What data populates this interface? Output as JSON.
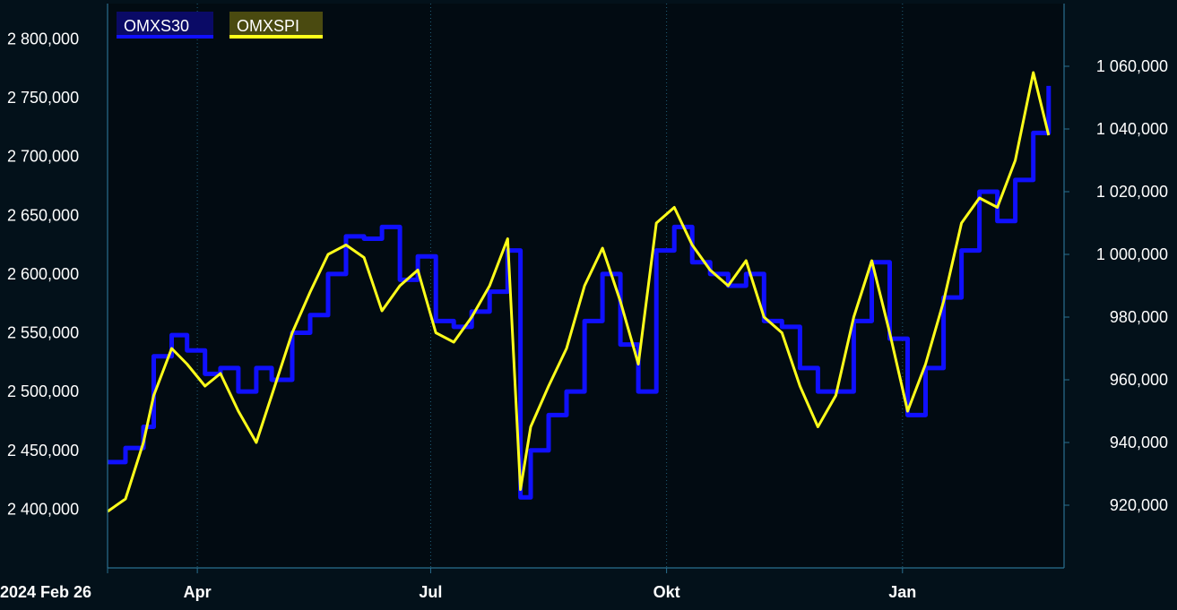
{
  "chart_data": {
    "type": "line",
    "title": "",
    "xlabel": "",
    "ylabel": "",
    "x_tick_labels": [
      "2024 Feb 26",
      "Apr",
      "Jul",
      "Okt",
      "Jan"
    ],
    "y_left": {
      "lim": [
        2350000,
        2830000
      ],
      "ticks": [
        2400000,
        2450000,
        2500000,
        2550000,
        2600000,
        2650000,
        2700000,
        2750000,
        2800000
      ],
      "tick_labels": [
        "2 400,000",
        "2 450,000",
        "2 500,000",
        "2 550,000",
        "2 600,000",
        "2 650,000",
        "2 700,000",
        "2 750,000",
        "2 800,000"
      ]
    },
    "y_right": {
      "lim": [
        900000,
        1080000
      ],
      "ticks": [
        920000,
        940000,
        960000,
        980000,
        1000000,
        1020000,
        1040000,
        1060000
      ],
      "tick_labels": [
        "920,000",
        "940,000",
        "960,000",
        "980,000",
        "1 000,000",
        "1 020,000",
        "1 040,000",
        "1 060,000"
      ]
    },
    "grid": "vertical dotted",
    "legend_position": "top-left",
    "series": [
      {
        "name": "OMXS30",
        "axis": "left",
        "color": "#1010ff",
        "style": "step",
        "points": [
          [
            "2024-02-26",
            2440000
          ],
          [
            "2024-03-04",
            2452000
          ],
          [
            "2024-03-11",
            2470000
          ],
          [
            "2024-03-15",
            2530000
          ],
          [
            "2024-03-22",
            2548000
          ],
          [
            "2024-03-28",
            2535000
          ],
          [
            "2024-04-04",
            2515000
          ],
          [
            "2024-04-10",
            2520000
          ],
          [
            "2024-04-17",
            2500000
          ],
          [
            "2024-04-24",
            2520000
          ],
          [
            "2024-04-30",
            2510000
          ],
          [
            "2024-05-08",
            2550000
          ],
          [
            "2024-05-15",
            2565000
          ],
          [
            "2024-05-22",
            2600000
          ],
          [
            "2024-05-29",
            2632000
          ],
          [
            "2024-06-05",
            2630000
          ],
          [
            "2024-06-12",
            2640000
          ],
          [
            "2024-06-19",
            2595000
          ],
          [
            "2024-06-26",
            2615000
          ],
          [
            "2024-07-03",
            2560000
          ],
          [
            "2024-07-10",
            2555000
          ],
          [
            "2024-07-17",
            2568000
          ],
          [
            "2024-07-24",
            2585000
          ],
          [
            "2024-07-31",
            2620000
          ],
          [
            "2024-08-05",
            2410000
          ],
          [
            "2024-08-09",
            2450000
          ],
          [
            "2024-08-16",
            2480000
          ],
          [
            "2024-08-23",
            2500000
          ],
          [
            "2024-08-30",
            2560000
          ],
          [
            "2024-09-06",
            2600000
          ],
          [
            "2024-09-13",
            2540000
          ],
          [
            "2024-09-20",
            2500000
          ],
          [
            "2024-09-27",
            2620000
          ],
          [
            "2024-10-04",
            2640000
          ],
          [
            "2024-10-11",
            2610000
          ],
          [
            "2024-10-18",
            2600000
          ],
          [
            "2024-10-25",
            2590000
          ],
          [
            "2024-11-01",
            2600000
          ],
          [
            "2024-11-08",
            2560000
          ],
          [
            "2024-11-15",
            2555000
          ],
          [
            "2024-11-22",
            2520000
          ],
          [
            "2024-11-29",
            2500000
          ],
          [
            "2024-12-06",
            2500000
          ],
          [
            "2024-12-13",
            2560000
          ],
          [
            "2024-12-20",
            2610000
          ],
          [
            "2024-12-27",
            2545000
          ],
          [
            "2025-01-03",
            2480000
          ],
          [
            "2025-01-10",
            2520000
          ],
          [
            "2025-01-17",
            2580000
          ],
          [
            "2025-01-24",
            2620000
          ],
          [
            "2025-01-31",
            2670000
          ],
          [
            "2025-02-07",
            2645000
          ],
          [
            "2025-02-14",
            2680000
          ],
          [
            "2025-02-21",
            2720000
          ],
          [
            "2025-02-27",
            2760000
          ]
        ]
      },
      {
        "name": "OMXSPI",
        "axis": "right",
        "color": "#ffff1a",
        "style": "line",
        "points": [
          [
            "2024-02-26",
            918000
          ],
          [
            "2024-03-04",
            922000
          ],
          [
            "2024-03-11",
            940000
          ],
          [
            "2024-03-15",
            955000
          ],
          [
            "2024-03-22",
            970000
          ],
          [
            "2024-03-28",
            965000
          ],
          [
            "2024-04-04",
            958000
          ],
          [
            "2024-04-10",
            962000
          ],
          [
            "2024-04-17",
            950000
          ],
          [
            "2024-04-24",
            940000
          ],
          [
            "2024-04-30",
            955000
          ],
          [
            "2024-05-08",
            975000
          ],
          [
            "2024-05-15",
            988000
          ],
          [
            "2024-05-22",
            1000000
          ],
          [
            "2024-05-29",
            1003000
          ],
          [
            "2024-06-05",
            999000
          ],
          [
            "2024-06-12",
            982000
          ],
          [
            "2024-06-19",
            990000
          ],
          [
            "2024-06-26",
            995000
          ],
          [
            "2024-07-03",
            975000
          ],
          [
            "2024-07-10",
            972000
          ],
          [
            "2024-07-17",
            980000
          ],
          [
            "2024-07-24",
            990000
          ],
          [
            "2024-07-31",
            1005000
          ],
          [
            "2024-08-05",
            925000
          ],
          [
            "2024-08-09",
            945000
          ],
          [
            "2024-08-16",
            958000
          ],
          [
            "2024-08-23",
            970000
          ],
          [
            "2024-08-30",
            990000
          ],
          [
            "2024-09-06",
            1002000
          ],
          [
            "2024-09-13",
            985000
          ],
          [
            "2024-09-20",
            965000
          ],
          [
            "2024-09-27",
            1010000
          ],
          [
            "2024-10-04",
            1015000
          ],
          [
            "2024-10-11",
            1003000
          ],
          [
            "2024-10-18",
            995000
          ],
          [
            "2024-10-25",
            990000
          ],
          [
            "2024-11-01",
            998000
          ],
          [
            "2024-11-08",
            980000
          ],
          [
            "2024-11-15",
            975000
          ],
          [
            "2024-11-22",
            958000
          ],
          [
            "2024-11-29",
            945000
          ],
          [
            "2024-12-06",
            955000
          ],
          [
            "2024-12-13",
            980000
          ],
          [
            "2024-12-20",
            998000
          ],
          [
            "2024-12-27",
            975000
          ],
          [
            "2025-01-03",
            950000
          ],
          [
            "2025-01-10",
            965000
          ],
          [
            "2025-01-17",
            985000
          ],
          [
            "2025-01-24",
            1010000
          ],
          [
            "2025-01-31",
            1018000
          ],
          [
            "2025-02-07",
            1015000
          ],
          [
            "2025-02-14",
            1030000
          ],
          [
            "2025-02-21",
            1058000
          ],
          [
            "2025-02-27",
            1038000
          ]
        ]
      }
    ]
  }
}
